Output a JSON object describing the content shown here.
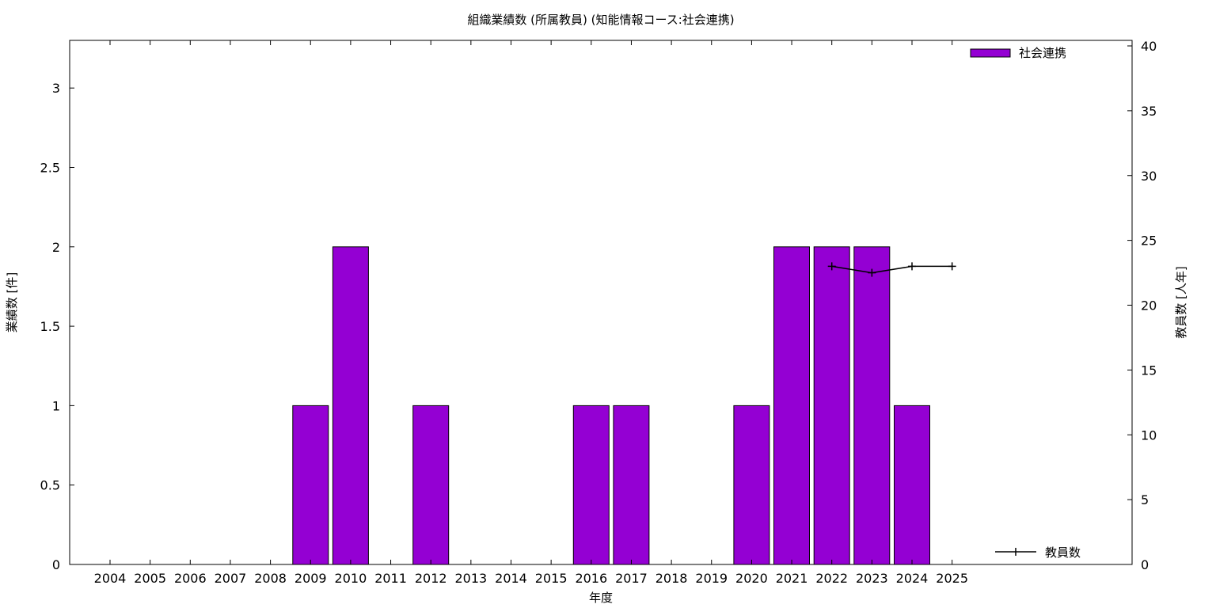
{
  "chart_data": {
    "type": "bar",
    "title": "組織業績数 (所属教員) (知能情報コース:社会連携)",
    "xlabel": "年度",
    "ylabel": "業績数 [件]",
    "y2label": "教員数 [人年]",
    "categories": [
      "2004",
      "2005",
      "2006",
      "2007",
      "2008",
      "2009",
      "2010",
      "2011",
      "2012",
      "2013",
      "2014",
      "2015",
      "2016",
      "2017",
      "2018",
      "2019",
      "2020",
      "2021",
      "2022",
      "2023",
      "2024",
      "2025"
    ],
    "series": [
      {
        "name": "社会連携",
        "type": "bar",
        "axis": "left",
        "color": "#9400d3",
        "values": [
          0,
          0,
          0,
          0,
          0,
          1,
          2,
          0,
          1,
          0,
          0,
          0,
          1,
          1,
          0,
          0,
          1,
          2,
          2,
          2,
          1,
          0
        ]
      },
      {
        "name": "教員数",
        "type": "line",
        "axis": "right",
        "color": "#000000",
        "points": [
          {
            "x": "2022",
            "y": 23
          },
          {
            "x": "2023",
            "y": 22.5
          },
          {
            "x": "2024",
            "y": 23
          },
          {
            "x": "2025",
            "y": 23
          }
        ]
      }
    ],
    "ylim": [
      0,
      3.3
    ],
    "yticks": [
      "0",
      "0.5",
      "1",
      "1.5",
      "2",
      "2.5",
      "3"
    ],
    "y2lim": [
      0,
      40
    ],
    "y2ticks": [
      "0",
      "5",
      "10",
      "15",
      "20",
      "25",
      "30",
      "35",
      "40"
    ],
    "grid": false,
    "legend_position": "top-right"
  }
}
